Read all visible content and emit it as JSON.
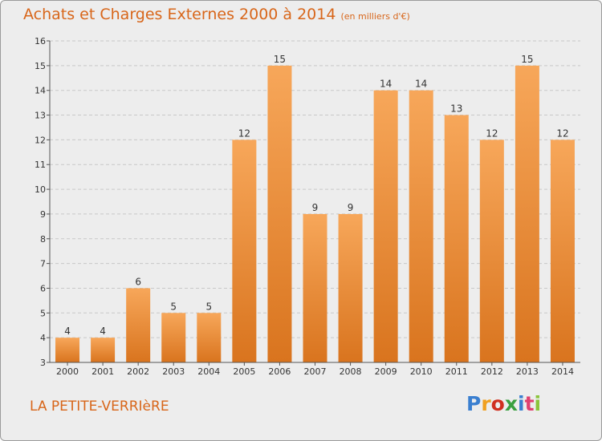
{
  "header": {
    "title": "Achats et Charges Externes 2000 à 2014",
    "subtitle": "(en milliers d'€)"
  },
  "footer": {
    "town": "LA PETITE-VERRIèRE",
    "logo": "Proxiti"
  },
  "colors": {
    "bar_top": "#f7a75a",
    "bar_bottom": "#d9741e",
    "text_orange": "#d8661a",
    "background": "#ededed"
  },
  "chart_data": {
    "type": "bar",
    "title": "Achats et Charges Externes 2000 à 2014",
    "subtitle": "(en milliers d'€)",
    "categories": [
      "2000",
      "2001",
      "2002",
      "2003",
      "2004",
      "2005",
      "2006",
      "2007",
      "2008",
      "2009",
      "2010",
      "2011",
      "2012",
      "2013",
      "2014"
    ],
    "values": [
      4,
      4,
      6,
      5,
      5,
      12,
      15,
      9,
      9,
      14,
      14,
      13,
      12,
      15,
      12
    ],
    "ylim": [
      3,
      16
    ],
    "yticks": [
      3,
      4,
      5,
      6,
      7,
      8,
      9,
      10,
      11,
      12,
      13,
      14,
      15,
      16
    ],
    "grid": "horizontal dashed",
    "data_labels": true
  }
}
